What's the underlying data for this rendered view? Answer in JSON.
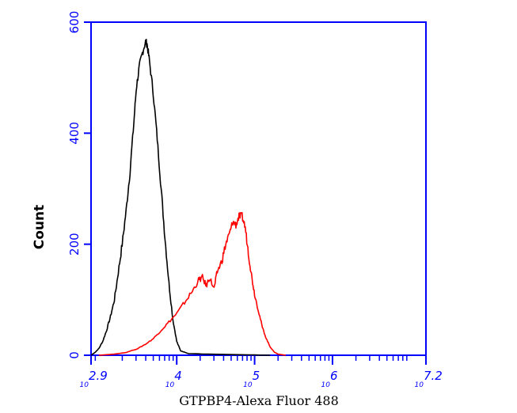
{
  "chart_data": {
    "type": "line",
    "title": "",
    "xlabel": "GTPBP4-Alexa Fluor 488",
    "ylabel": "Count",
    "x_scale": "log",
    "xlim": [
      2.9,
      7.2
    ],
    "ylim": [
      0,
      600
    ],
    "x_ticks": [
      {
        "exp": "2.9",
        "value": 2.9
      },
      {
        "exp": "4",
        "value": 4
      },
      {
        "exp": "5",
        "value": 5
      },
      {
        "exp": "6",
        "value": 6
      },
      {
        "exp": "7.2",
        "value": 7.2
      }
    ],
    "x_tick_base": "10",
    "y_ticks": [
      0,
      200,
      400,
      600
    ],
    "grid": false,
    "axis_color": "#0000ff",
    "series": [
      {
        "color": "#000000",
        "points": [
          [
            2.9,
            0
          ],
          [
            2.95,
            5
          ],
          [
            3.0,
            12
          ],
          [
            3.05,
            25
          ],
          [
            3.1,
            45
          ],
          [
            3.15,
            70
          ],
          [
            3.2,
            100
          ],
          [
            3.25,
            150
          ],
          [
            3.3,
            200
          ],
          [
            3.35,
            260
          ],
          [
            3.4,
            330
          ],
          [
            3.45,
            420
          ],
          [
            3.48,
            480
          ],
          [
            3.52,
            520
          ],
          [
            3.56,
            545
          ],
          [
            3.6,
            565
          ],
          [
            3.62,
            560
          ],
          [
            3.65,
            530
          ],
          [
            3.7,
            470
          ],
          [
            3.75,
            390
          ],
          [
            3.8,
            300
          ],
          [
            3.85,
            210
          ],
          [
            3.9,
            130
          ],
          [
            3.95,
            65
          ],
          [
            4.0,
            25
          ],
          [
            4.05,
            8
          ],
          [
            4.15,
            3
          ],
          [
            4.4,
            2
          ],
          [
            4.8,
            1
          ],
          [
            5.2,
            0
          ]
        ]
      },
      {
        "color": "#ff0000",
        "points": [
          [
            3.0,
            0
          ],
          [
            3.2,
            2
          ],
          [
            3.35,
            5
          ],
          [
            3.5,
            12
          ],
          [
            3.6,
            20
          ],
          [
            3.7,
            30
          ],
          [
            3.8,
            45
          ],
          [
            3.9,
            60
          ],
          [
            4.0,
            75
          ],
          [
            4.1,
            95
          ],
          [
            4.2,
            115
          ],
          [
            4.28,
            135
          ],
          [
            4.33,
            140
          ],
          [
            4.38,
            125
          ],
          [
            4.42,
            140
          ],
          [
            4.48,
            120
          ],
          [
            4.52,
            150
          ],
          [
            4.58,
            170
          ],
          [
            4.63,
            200
          ],
          [
            4.68,
            220
          ],
          [
            4.72,
            240
          ],
          [
            4.76,
            235
          ],
          [
            4.8,
            250
          ],
          [
            4.84,
            250
          ],
          [
            4.88,
            230
          ],
          [
            4.92,
            185
          ],
          [
            4.96,
            145
          ],
          [
            5.0,
            110
          ],
          [
            5.05,
            80
          ],
          [
            5.1,
            50
          ],
          [
            5.15,
            30
          ],
          [
            5.2,
            15
          ],
          [
            5.25,
            6
          ],
          [
            5.3,
            2
          ],
          [
            5.4,
            0
          ]
        ]
      }
    ]
  }
}
